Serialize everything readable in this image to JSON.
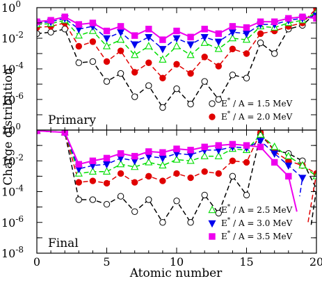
{
  "chart_data": {
    "type": "line",
    "xlabel": "Atomic number",
    "ylabel": "Charge distribution",
    "xlim": [
      0,
      20
    ],
    "ylim": [
      1e-08,
      1
    ],
    "yscale": "log",
    "x_ticks": [
      0,
      5,
      10,
      15,
      20
    ],
    "x_tick_labels": [
      "0",
      "5",
      "10",
      "15",
      "20"
    ],
    "y_ticks": [
      1e-08,
      1e-06,
      0.0001,
      0.01,
      1
    ],
    "panels": [
      {
        "label": "Primary",
        "y_tick_labels": [
          {
            "base": "10",
            "exp": "-6"
          },
          {
            "base": "10",
            "exp": "-4"
          },
          {
            "base": "10",
            "exp": "-2"
          },
          {
            "base": "10",
            "exp": "0"
          }
        ],
        "legend": [
          {
            "series": "E1.5",
            "text": "E* / A = 1.5 MeV"
          },
          {
            "series": "E2.0",
            "text": "E* / A = 2.0 MeV"
          }
        ],
        "series": [
          {
            "id": "E1.5",
            "color": "#000000",
            "marker": "circle-open",
            "x": [
              0,
              1,
              2,
              3,
              4,
              5,
              6,
              7,
              8,
              9,
              10,
              11,
              12,
              13,
              14,
              15,
              16,
              17,
              18,
              19,
              20
            ],
            "y": [
              0.02,
              0.025,
              0.04,
              0.00025,
              0.0003,
              1.5e-05,
              5e-05,
              1.5e-06,
              8e-06,
              3e-07,
              5e-06,
              5e-07,
              1.5e-05,
              1e-06,
              4e-05,
              2.5e-05,
              0.005,
              0.001,
              0.04,
              0.07,
              0.5
            ]
          },
          {
            "id": "E2.0",
            "color": "#e00000",
            "marker": "circle-filled",
            "x": [
              0,
              1,
              2,
              3,
              4,
              5,
              6,
              7,
              8,
              9,
              10,
              11,
              12,
              13,
              14,
              15,
              16,
              17,
              18,
              19,
              20
            ],
            "y": [
              0.05,
              0.06,
              0.1,
              0.003,
              0.006,
              0.0003,
              0.0015,
              6e-05,
              0.00025,
              2.5e-05,
              0.0002,
              5e-05,
              0.0006,
              0.00015,
              0.002,
              0.001,
              0.02,
              0.03,
              0.06,
              0.1,
              0.9
            ]
          },
          {
            "id": "E2.5",
            "color": "#00dd00",
            "marker": "triangle-up-open",
            "x": [
              0,
              1,
              2,
              3,
              4,
              5,
              6,
              7,
              8,
              9,
              10,
              11,
              12,
              13,
              14,
              15,
              16,
              17,
              18,
              19,
              20
            ],
            "y": [
              0.08,
              0.09,
              0.15,
              0.015,
              0.03,
              0.003,
              0.008,
              0.0008,
              0.003,
              0.0004,
              0.003,
              0.0008,
              0.005,
              0.002,
              0.01,
              0.008,
              0.06,
              0.05,
              0.1,
              0.15,
              0.5
            ]
          },
          {
            "id": "E3.0",
            "color": "#0000ee",
            "marker": "triangle-down-filled",
            "x": [
              0,
              1,
              2,
              3,
              4,
              5,
              6,
              7,
              8,
              9,
              10,
              11,
              12,
              13,
              14,
              15,
              16,
              17,
              18,
              19,
              20
            ],
            "y": [
              0.1,
              0.12,
              0.2,
              0.04,
              0.06,
              0.01,
              0.025,
              0.004,
              0.012,
              0.002,
              0.01,
              0.004,
              0.012,
              0.006,
              0.025,
              0.02,
              0.08,
              0.08,
              0.15,
              0.2,
              0.3
            ]
          },
          {
            "id": "E3.5",
            "color": "#ee00ee",
            "marker": "square-filled",
            "x": [
              0,
              1,
              2,
              3,
              4,
              5,
              6,
              7,
              8,
              9,
              10,
              11,
              12,
              13,
              14,
              15,
              16,
              17,
              18,
              19,
              20
            ],
            "y": [
              0.12,
              0.15,
              0.25,
              0.08,
              0.1,
              0.03,
              0.06,
              0.015,
              0.04,
              0.008,
              0.03,
              0.012,
              0.04,
              0.02,
              0.06,
              0.05,
              0.12,
              0.12,
              0.2,
              0.25,
              0.2
            ]
          }
        ]
      },
      {
        "label": "Final",
        "y_tick_labels": [
          {
            "base": "10",
            "exp": "-8"
          },
          {
            "base": "10",
            "exp": "-6"
          },
          {
            "base": "10",
            "exp": "-4"
          },
          {
            "base": "10",
            "exp": "-2"
          },
          {
            "base": "10",
            "exp": "0"
          }
        ],
        "legend": [
          {
            "series": "E2.5",
            "text": "E* / A = 2.5 MeV"
          },
          {
            "series": "E3.0",
            "text": "E* / A = 3.0 MeV"
          },
          {
            "series": "E3.5",
            "text": "E* / A = 3.5 MeV"
          }
        ],
        "series": [
          {
            "id": "E1.5",
            "color": "#000000",
            "marker": "circle-open",
            "x": [
              0,
              2,
              3,
              4,
              5,
              6,
              7,
              8,
              9,
              10,
              11,
              12,
              13,
              14,
              15,
              16,
              17,
              18,
              19,
              20
            ],
            "y": [
              0.9,
              0.7,
              3e-05,
              3e-05,
              1.5e-05,
              5e-05,
              5e-06,
              3e-05,
              1e-06,
              2.5e-05,
              1e-06,
              6e-05,
              4e-06,
              0.001,
              6e-05,
              0.5,
              0.05,
              0.03,
              0.01,
              0.00015
            ],
            "tail": [
              19.6,
              5e-07
            ]
          },
          {
            "id": "E2.0",
            "color": "#e00000",
            "marker": "circle-filled",
            "x": [
              0,
              2,
              3,
              4,
              5,
              6,
              7,
              8,
              9,
              10,
              11,
              12,
              13,
              14,
              15,
              16,
              17,
              18,
              19,
              20
            ],
            "y": [
              0.9,
              0.7,
              0.0004,
              0.0005,
              0.00035,
              0.0015,
              0.0004,
              0.001,
              0.0005,
              0.0015,
              0.0008,
              0.002,
              0.0015,
              0.01,
              0.008,
              0.7,
              0.04,
              0.01,
              0.005,
              0.0015
            ],
            "tail": [
              19.4,
              1e-06
            ]
          },
          {
            "id": "E2.5",
            "color": "#00dd00",
            "marker": "triangle-up-open",
            "x": [
              0,
              2,
              3,
              4,
              5,
              6,
              7,
              8,
              9,
              10,
              11,
              12,
              13,
              14,
              15,
              16,
              17,
              18,
              19,
              20
            ],
            "y": [
              0.9,
              0.7,
              0.0015,
              0.002,
              0.002,
              0.006,
              0.004,
              0.008,
              0.005,
              0.012,
              0.01,
              0.02,
              0.02,
              0.06,
              0.05,
              0.5,
              0.08,
              0.02,
              0.005,
              0.001
            ]
          },
          {
            "id": "E3.0",
            "color": "#0000ee",
            "marker": "triangle-down-filled",
            "x": [
              0,
              2,
              3,
              4,
              5,
              6,
              7,
              8,
              9,
              10,
              11,
              12,
              13,
              14,
              15,
              16,
              17,
              18,
              19
            ],
            "y": [
              0.9,
              0.7,
              0.003,
              0.005,
              0.006,
              0.015,
              0.01,
              0.02,
              0.015,
              0.03,
              0.025,
              0.05,
              0.05,
              0.08,
              0.07,
              0.2,
              0.03,
              0.005,
              0.0008
            ],
            "tail": [
              18.8,
              5e-05
            ]
          },
          {
            "id": "E3.5",
            "color": "#ee00ee",
            "marker": "square-filled",
            "x": [
              0,
              2,
              3,
              4,
              5,
              6,
              7,
              8,
              9,
              10,
              11,
              12,
              13,
              14,
              15,
              16,
              17,
              18
            ],
            "y": [
              0.9,
              0.7,
              0.006,
              0.01,
              0.015,
              0.03,
              0.02,
              0.04,
              0.035,
              0.06,
              0.05,
              0.08,
              0.1,
              0.12,
              0.1,
              0.08,
              0.008,
              0.001
            ],
            "tail": [
              18.6,
              5e-06
            ]
          }
        ]
      }
    ]
  }
}
